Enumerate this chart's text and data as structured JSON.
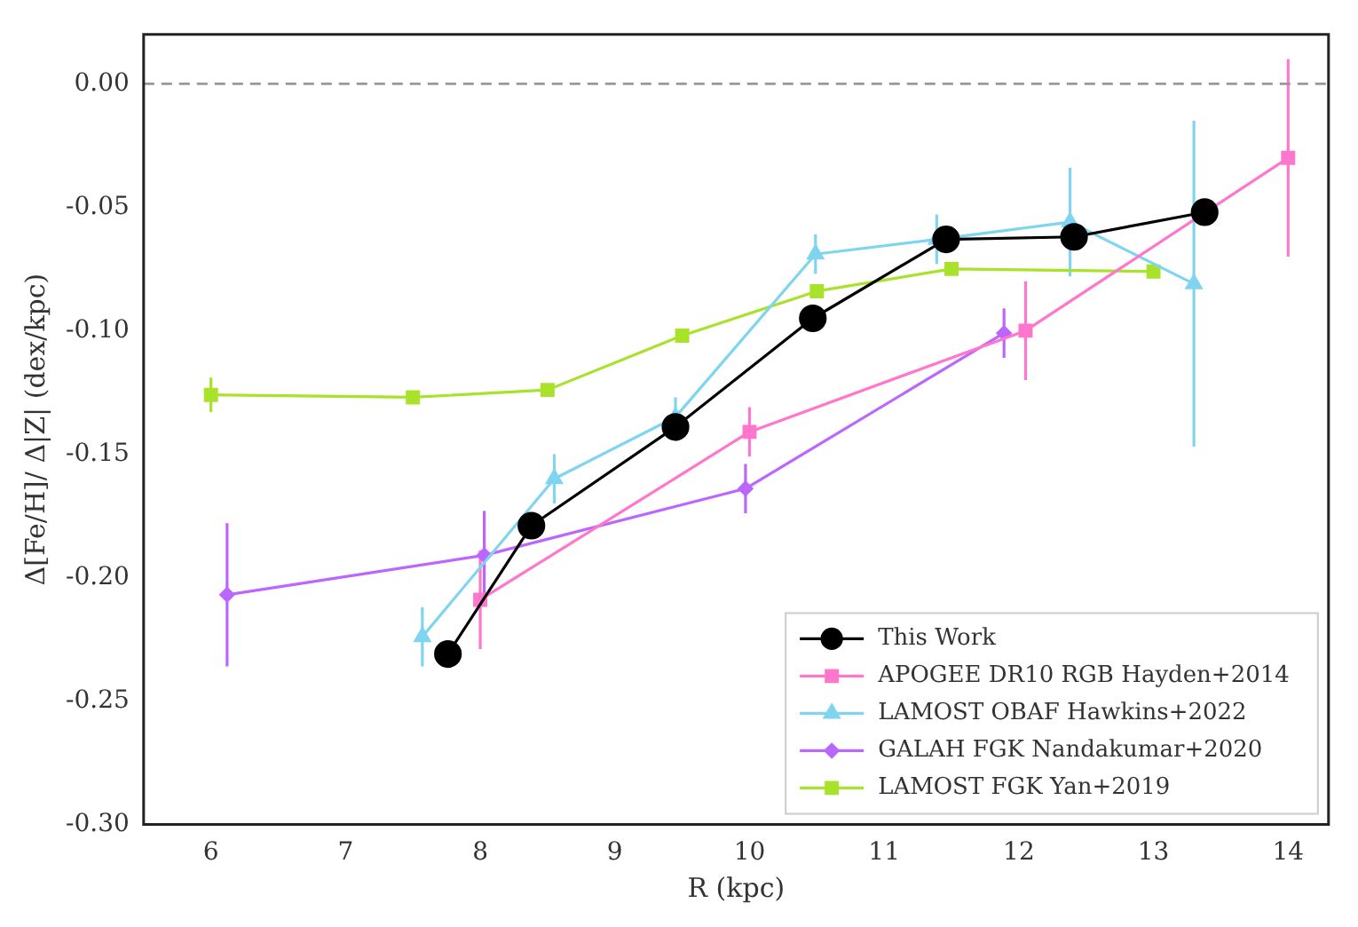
{
  "chart_data": {
    "type": "line",
    "xlabel": "R (kpc)",
    "ylabel": "Δ[Fe/H]/ Δ|Z| (dex/kpc)",
    "xlim": [
      5.5,
      14.3
    ],
    "xticks": [
      6,
      7,
      8,
      9,
      10,
      11,
      12,
      13,
      14
    ],
    "ylim": [
      -0.3,
      0.02
    ],
    "yticks": [
      {
        "value": -0.3,
        "label": "-0.30"
      },
      {
        "value": -0.25,
        "label": "-0.25"
      },
      {
        "value": -0.2,
        "label": "-0.20"
      },
      {
        "value": -0.15,
        "label": "-0.15"
      },
      {
        "value": -0.1,
        "label": "-0.10"
      },
      {
        "value": -0.05,
        "label": "-0.05"
      },
      {
        "value": 0,
        "label": "0.00"
      }
    ],
    "grid": false,
    "legend": "bottom right",
    "ref_lines": [
      {
        "axis": "y",
        "value": 0,
        "color": "#999999",
        "line_style": "dashed"
      }
    ],
    "series": [
      {
        "name": "This Work",
        "color": "#000000",
        "marker": "circle",
        "x": [
          7.76,
          8.38,
          9.45,
          10.47,
          11.46,
          12.41,
          13.38
        ],
        "values": [
          -0.231,
          -0.179,
          -0.139,
          -0.095,
          -0.063,
          -0.062,
          -0.052
        ]
      },
      {
        "name": "APOGEE DR10 RGB Hayden+2014",
        "color": "#ff77cc",
        "marker": "square",
        "x": [
          8.0,
          10.0,
          12.05,
          14.0
        ],
        "values": [
          -0.209,
          -0.141,
          -0.1,
          -0.03
        ],
        "errors": [
          0.02,
          0.01,
          0.02,
          0.04
        ]
      },
      {
        "name": "LAMOST OBAF Hawkins+2022",
        "color": "#7fd4f0",
        "marker": "triangle",
        "x": [
          7.57,
          8.55,
          9.45,
          10.49,
          11.39,
          12.38,
          13.3
        ],
        "values": [
          -0.224,
          -0.16,
          -0.135,
          -0.069,
          -0.063,
          -0.056,
          -0.081
        ],
        "errors": [
          0.012,
          0.01,
          0.008,
          0.008,
          0.01,
          0.022,
          0.066
        ]
      },
      {
        "name": "GALAH FGK Nandakumar+2020",
        "color": "#bb66ff",
        "marker": "diamond",
        "x": [
          6.12,
          8.03,
          9.97,
          11.89
        ],
        "values": [
          -0.207,
          -0.191,
          -0.164,
          -0.101
        ],
        "errors": [
          0.029,
          0.018,
          0.01,
          0.01
        ]
      },
      {
        "name": "LAMOST FGK Yan+2019",
        "color": "#a8e22a",
        "marker": "square",
        "x": [
          6.0,
          7.5,
          8.5,
          9.5,
          10.5,
          11.5,
          13.0
        ],
        "values": [
          -0.126,
          -0.127,
          -0.124,
          -0.102,
          -0.084,
          -0.075,
          -0.076
        ],
        "errors": [
          0.007,
          null,
          null,
          null,
          null,
          null,
          null
        ]
      }
    ]
  }
}
